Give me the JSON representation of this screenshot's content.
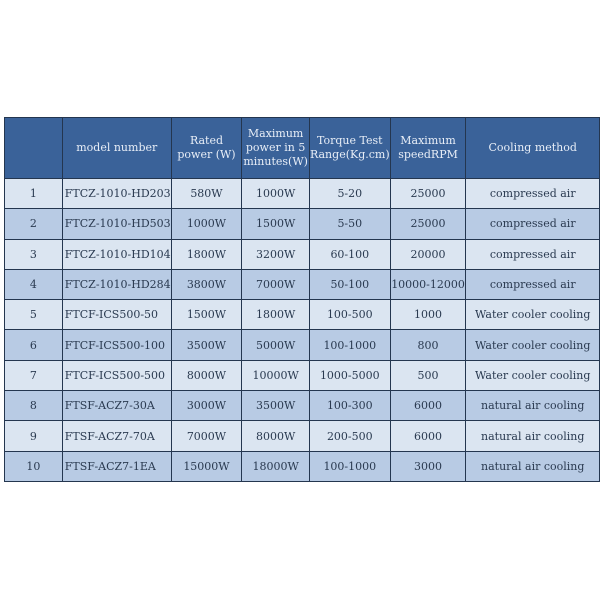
{
  "table": {
    "headers": [
      "",
      "model number",
      "Rated power (W)",
      "Maximum power in 5 minutes(W)",
      "Torque Test Range(Kg.cm)",
      "Maximum speedRPM",
      "Cooling method"
    ],
    "rows": [
      [
        "1",
        "FTCZ-1010-HD203",
        "580W",
        "1000W",
        "5-20",
        "25000",
        "compressed air"
      ],
      [
        "2",
        "FTCZ-1010-HD503",
        "1000W",
        "1500W",
        "5-50",
        "25000",
        "compressed air"
      ],
      [
        "3",
        "FTCZ-1010-HD104",
        "1800W",
        "3200W",
        "60-100",
        "20000",
        "compressed air"
      ],
      [
        "4",
        "FTCZ-1010-HD284",
        "3800W",
        "7000W",
        "50-100",
        "10000-12000",
        "compressed air"
      ],
      [
        "5",
        "FTCF-ICS500-50",
        "1500W",
        "1800W",
        "100-500",
        "1000",
        "Water cooler cooling"
      ],
      [
        "6",
        "FTCF-ICS500-100",
        "3500W",
        "5000W",
        "100-1000",
        "800",
        "Water cooler cooling"
      ],
      [
        "7",
        "FTCF-ICS500-500",
        "8000W",
        "10000W",
        "1000-5000",
        "500",
        "Water cooler cooling"
      ],
      [
        "8",
        "FTSF-ACZ7-30A",
        "3000W",
        "3500W",
        "100-300",
        "6000",
        "natural air cooling"
      ],
      [
        "9",
        "FTSF-ACZ7-70A",
        "7000W",
        "8000W",
        "200-500",
        "6000",
        "natural air cooling"
      ],
      [
        "10",
        "FTSF-ACZ7-1EA",
        "15000W",
        "18000W",
        "100-1000",
        "3000",
        "natural air cooling"
      ]
    ]
  },
  "colors": {
    "header": "#3a6299",
    "row_light": "#dbe5f1",
    "row_dark": "#b8cbe4",
    "border": "#24364f"
  }
}
